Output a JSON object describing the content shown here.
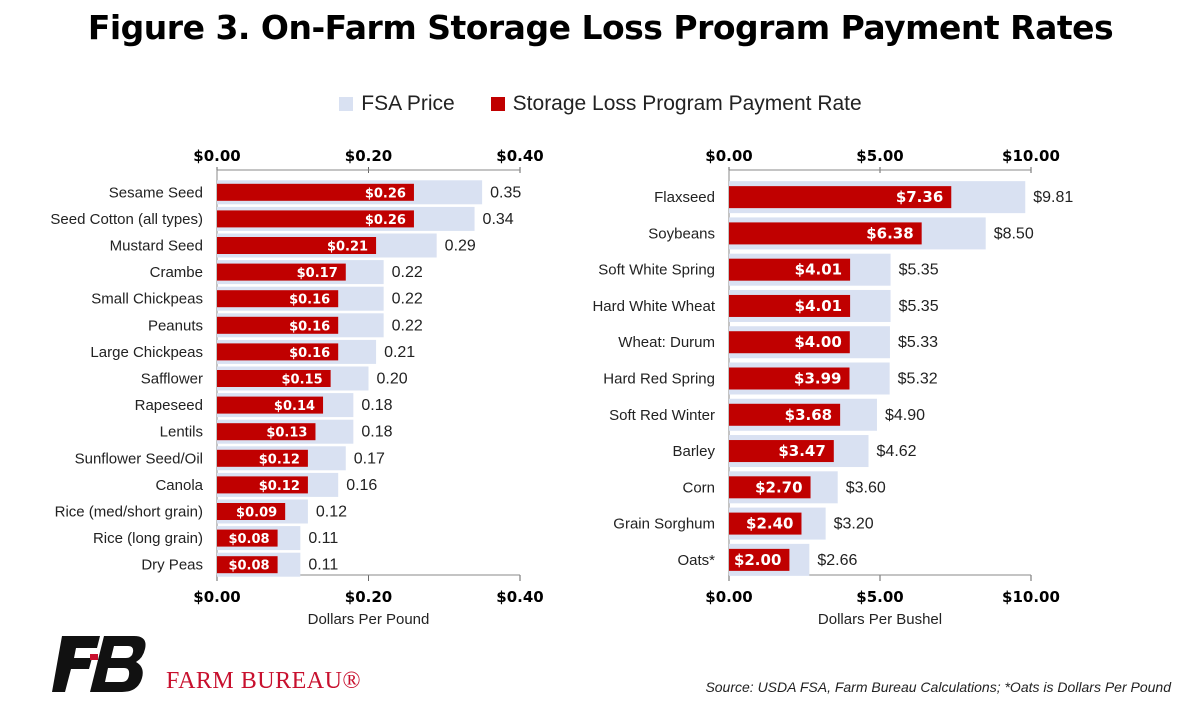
{
  "title": "Figure 3. On-Farm Storage Loss Program Payment Rates",
  "legend": {
    "fsa_label": "FSA Price",
    "slp_label": "Storage Loss Program Payment Rate"
  },
  "colors": {
    "fsa": "#d9e1f2",
    "slp": "#c00000"
  },
  "chart_data": [
    {
      "type": "bar",
      "orientation": "horizontal",
      "categories": [
        "Sesame Seed",
        "Seed Cotton (all types)",
        "Mustard Seed",
        "Crambe",
        "Small Chickpeas",
        "Peanuts",
        "Large Chickpeas",
        "Safflower",
        "Rapeseed",
        "Lentils",
        "Sunflower Seed/Oil",
        "Canola",
        "Rice (med/short grain)",
        "Rice (long grain)",
        "Dry Peas"
      ],
      "series": [
        {
          "name": "FSA Price",
          "values": [
            0.35,
            0.34,
            0.29,
            0.22,
            0.22,
            0.22,
            0.21,
            0.2,
            0.18,
            0.18,
            0.17,
            0.16,
            0.12,
            0.11,
            0.11
          ],
          "labels": [
            "0.35",
            "0.34",
            "0.29",
            "0.22",
            "0.22",
            "0.22",
            "0.21",
            "0.20",
            "0.18",
            "0.18",
            "0.17",
            "0.16",
            "0.12",
            "0.11",
            "0.11"
          ]
        },
        {
          "name": "Storage Loss Program Payment Rate",
          "values": [
            0.26,
            0.26,
            0.21,
            0.17,
            0.16,
            0.16,
            0.16,
            0.15,
            0.14,
            0.13,
            0.12,
            0.12,
            0.09,
            0.08,
            0.08
          ],
          "labels": [
            "$0.26",
            "$0.26",
            "$0.21",
            "$0.17",
            "$0.16",
            "$0.16",
            "$0.16",
            "$0.15",
            "$0.14",
            "$0.13",
            "$0.12",
            "$0.12",
            "$0.09",
            "$0.08",
            "$0.08"
          ]
        }
      ],
      "xlim": [
        0,
        0.4
      ],
      "ticks": [
        "$0.00",
        "$0.20",
        "$0.40"
      ],
      "tick_values": [
        0,
        0.2,
        0.4
      ],
      "xlabel": "Dollars Per Pound"
    },
    {
      "type": "bar",
      "orientation": "horizontal",
      "categories": [
        "Flaxseed",
        "Soybeans",
        "Soft White Spring",
        "Hard White Wheat",
        "Wheat: Durum",
        "Hard Red Spring",
        "Soft Red Winter",
        "Barley",
        "Corn",
        "Grain Sorghum",
        "Oats*"
      ],
      "series": [
        {
          "name": "FSA Price",
          "values": [
            9.81,
            8.5,
            5.35,
            5.35,
            5.33,
            5.32,
            4.9,
            4.62,
            3.6,
            3.2,
            2.66
          ],
          "labels": [
            "$9.81",
            "$8.50",
            "$5.35",
            "$5.35",
            "$5.33",
            "$5.32",
            "$4.90",
            "$4.62",
            "$3.60",
            "$3.20",
            "$2.66"
          ]
        },
        {
          "name": "Storage Loss Program Payment Rate",
          "values": [
            7.36,
            6.38,
            4.01,
            4.01,
            4.0,
            3.99,
            3.68,
            3.47,
            2.7,
            2.4,
            2.0
          ],
          "labels": [
            "$7.36",
            "$6.38",
            "$4.01",
            "$4.01",
            "$4.00",
            "$3.99",
            "$3.68",
            "$3.47",
            "$2.70",
            "$2.40",
            "$2.00"
          ]
        }
      ],
      "xlim": [
        0,
        10
      ],
      "ticks": [
        "$0.00",
        "$5.00",
        "$10.00"
      ],
      "tick_values": [
        0,
        5,
        10
      ],
      "xlabel": "Dollars Per Bushel"
    }
  ],
  "source": "Source: USDA FSA, Farm Bureau Calculations; *Oats is Dollars Per Pound",
  "logo": {
    "text": "FARM BUREAU®"
  }
}
